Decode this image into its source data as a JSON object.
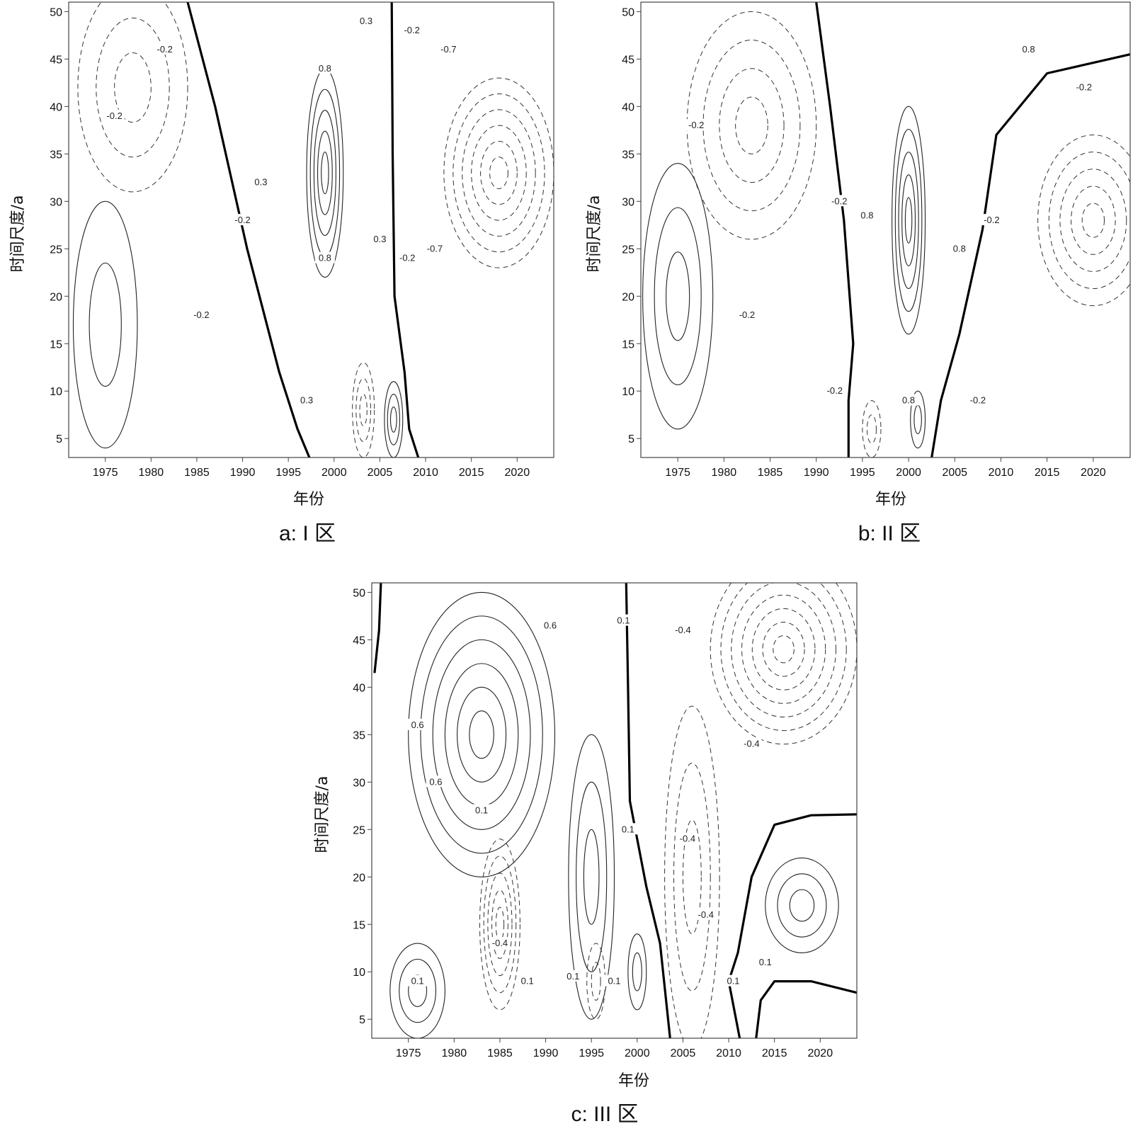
{
  "chart_data": [
    {
      "type": "contour",
      "caption": "a: I 区",
      "xlabel": "年份",
      "ylabel": "时间尺度/a",
      "xlim": [
        1971,
        2024
      ],
      "ylim": [
        3,
        51
      ],
      "xticks": [
        1975,
        1980,
        1985,
        1990,
        1995,
        2000,
        2005,
        2010,
        2015,
        2020
      ],
      "yticks": [
        5,
        10,
        15,
        20,
        25,
        30,
        35,
        40,
        45,
        50
      ],
      "zero_lines": [
        [
          [
            1984.0,
            51
          ],
          [
            1987.0,
            40
          ],
          [
            1990.5,
            25
          ],
          [
            1994.0,
            12
          ],
          [
            1996.0,
            6
          ],
          [
            1997.3,
            3
          ]
        ],
        [
          [
            2006.3,
            51
          ],
          [
            2006.4,
            35
          ],
          [
            2006.6,
            20
          ],
          [
            2007.7,
            12
          ],
          [
            2008.2,
            6
          ],
          [
            2009.2,
            3
          ]
        ]
      ],
      "positive_centers": [
        {
          "x": 1999.0,
          "y": 33,
          "rx": 2.0,
          "ry": 11,
          "levels": 5
        },
        {
          "x": 2006.5,
          "y": 7,
          "rx": 1.0,
          "ry": 4,
          "levels": 3
        },
        {
          "x": 1975.0,
          "y": 17,
          "rx": 3.5,
          "ry": 13,
          "levels": 2
        }
      ],
      "negative_centers": [
        {
          "x": 2018.0,
          "y": 33,
          "rx": 6,
          "ry": 10,
          "levels": 6
        },
        {
          "x": 1978.0,
          "y": 42,
          "rx": 6,
          "ry": 11,
          "levels": 3
        },
        {
          "x": 2003.2,
          "y": 8,
          "rx": 1.2,
          "ry": 5,
          "levels": 3
        }
      ],
      "contour_labels": [
        {
          "x": 1981.5,
          "y": 46,
          "text": "-0.2"
        },
        {
          "x": 1976.0,
          "y": 39,
          "text": "-0.2"
        },
        {
          "x": 1990.0,
          "y": 28,
          "text": "-0.2"
        },
        {
          "x": 1985.5,
          "y": 18,
          "text": "-0.2"
        },
        {
          "x": 2003.5,
          "y": 49,
          "text": "0.3"
        },
        {
          "x": 1999.0,
          "y": 44,
          "text": "0.8"
        },
        {
          "x": 1992.0,
          "y": 32,
          "text": "0.3"
        },
        {
          "x": 1999.0,
          "y": 24,
          "text": "0.8"
        },
        {
          "x": 2005.0,
          "y": 26,
          "text": "0.3"
        },
        {
          "x": 1997.0,
          "y": 9,
          "text": "0.3"
        },
        {
          "x": 2008.5,
          "y": 48,
          "text": "-0.2"
        },
        {
          "x": 2012.5,
          "y": 46,
          "text": "-0.7"
        },
        {
          "x": 2008.0,
          "y": 24,
          "text": "-0.2"
        },
        {
          "x": 2011.0,
          "y": 25,
          "text": "-0.7"
        }
      ]
    },
    {
      "type": "contour",
      "caption": "b:  II 区",
      "xlabel": "年份",
      "ylabel": "时间尺度/a",
      "xlim": [
        1971,
        2024
      ],
      "ylim": [
        3,
        51
      ],
      "xticks": [
        1975,
        1980,
        1985,
        1990,
        1995,
        2000,
        2005,
        2010,
        2015,
        2020
      ],
      "yticks": [
        5,
        10,
        15,
        20,
        25,
        30,
        35,
        40,
        45,
        50
      ],
      "zero_lines": [
        [
          [
            1990.0,
            51
          ],
          [
            1991.5,
            40
          ],
          [
            1993.0,
            28
          ],
          [
            1994.0,
            15
          ],
          [
            1993.5,
            9
          ],
          [
            1993.5,
            3
          ]
        ],
        [
          [
            2024.0,
            45.5
          ],
          [
            2015.0,
            43.5
          ],
          [
            2009.5,
            37
          ],
          [
            2008.0,
            27
          ],
          [
            2005.5,
            16
          ],
          [
            2003.5,
            9
          ],
          [
            2002.5,
            3
          ]
        ]
      ],
      "positive_centers": [
        {
          "x": 2000.0,
          "y": 28,
          "rx": 1.8,
          "ry": 12,
          "levels": 5
        },
        {
          "x": 1975.0,
          "y": 20,
          "rx": 3.8,
          "ry": 14,
          "levels": 3
        },
        {
          "x": 2001.0,
          "y": 7,
          "rx": 0.8,
          "ry": 3,
          "levels": 2
        }
      ],
      "negative_centers": [
        {
          "x": 2020.0,
          "y": 28,
          "rx": 6,
          "ry": 9,
          "levels": 5
        },
        {
          "x": 1983.0,
          "y": 38,
          "rx": 7,
          "ry": 12,
          "levels": 4
        },
        {
          "x": 1996.0,
          "y": 6,
          "rx": 1.0,
          "ry": 3,
          "levels": 2
        }
      ],
      "contour_labels": [
        {
          "x": 1977.0,
          "y": 38,
          "text": "-0.2"
        },
        {
          "x": 1982.5,
          "y": 18,
          "text": "-0.2"
        },
        {
          "x": 1992.5,
          "y": 30,
          "text": "-0.2"
        },
        {
          "x": 1992.0,
          "y": 10,
          "text": "-0.2"
        },
        {
          "x": 1995.5,
          "y": 28.5,
          "text": "0.8"
        },
        {
          "x": 2000.0,
          "y": 9,
          "text": "0.8"
        },
        {
          "x": 2005.5,
          "y": 25,
          "text": "0.8"
        },
        {
          "x": 2009.0,
          "y": 28,
          "text": "-0.2"
        },
        {
          "x": 2013.0,
          "y": 46,
          "text": "0.8"
        },
        {
          "x": 2019.0,
          "y": 42,
          "text": "-0.2"
        },
        {
          "x": 2007.5,
          "y": 9,
          "text": "-0.2"
        }
      ]
    },
    {
      "type": "contour",
      "caption": "c: III 区",
      "xlabel": "年份",
      "ylabel": "时间尺度/a",
      "xlim": [
        1971,
        2024
      ],
      "ylim": [
        3,
        51
      ],
      "xticks": [
        1975,
        1980,
        1985,
        1990,
        1995,
        2000,
        2005,
        2010,
        2015,
        2020
      ],
      "yticks": [
        5,
        10,
        15,
        20,
        25,
        30,
        35,
        40,
        45,
        50
      ],
      "zero_lines": [
        [
          [
            1971.3,
            41.5
          ],
          [
            1971.8,
            46
          ],
          [
            1972.0,
            51
          ]
        ],
        [
          [
            1998.8,
            51
          ],
          [
            1999.0,
            40
          ],
          [
            1999.2,
            28
          ],
          [
            2001.0,
            19
          ],
          [
            2002.5,
            13
          ],
          [
            2003.6,
            3
          ]
        ],
        [
          [
            2024.0,
            26.6
          ],
          [
            2019.0,
            26.5
          ],
          [
            2015.0,
            25.5
          ],
          [
            2012.5,
            20
          ],
          [
            2011.0,
            12
          ],
          [
            2010.0,
            9
          ],
          [
            2011.2,
            3
          ]
        ],
        [
          [
            2024.0,
            7.8
          ],
          [
            2019.0,
            9
          ],
          [
            2015.0,
            9
          ],
          [
            2013.5,
            7
          ],
          [
            2013.0,
            3
          ]
        ]
      ],
      "positive_centers": [
        {
          "x": 1983.0,
          "y": 35,
          "rx": 8,
          "ry": 15,
          "levels": 6
        },
        {
          "x": 1995.0,
          "y": 20,
          "rx": 2.5,
          "ry": 15,
          "levels": 3
        },
        {
          "x": 2018.0,
          "y": 17,
          "rx": 4,
          "ry": 5,
          "levels": 3
        },
        {
          "x": 2000.0,
          "y": 10,
          "rx": 1.0,
          "ry": 4,
          "levels": 2
        },
        {
          "x": 1976.0,
          "y": 8,
          "rx": 3,
          "ry": 5,
          "levels": 3
        }
      ],
      "negative_centers": [
        {
          "x": 2016.0,
          "y": 44,
          "rx": 8,
          "ry": 10,
          "levels": 7
        },
        {
          "x": 1985.0,
          "y": 15,
          "rx": 2.2,
          "ry": 9,
          "levels": 5
        },
        {
          "x": 2006.0,
          "y": 20,
          "rx": 3,
          "ry": 18,
          "levels": 3
        },
        {
          "x": 1995.5,
          "y": 9,
          "rx": 1.0,
          "ry": 4,
          "levels": 2
        }
      ]
    }
  ],
  "labels": {
    "c_labels": [
      {
        "x": 1976.0,
        "y": 36,
        "text": "0.6"
      },
      {
        "x": 1990.5,
        "y": 46.5,
        "text": "0.6"
      },
      {
        "x": 1978.0,
        "y": 30,
        "text": "0.6"
      },
      {
        "x": 1998.5,
        "y": 47,
        "text": "0.1"
      },
      {
        "x": 2005.0,
        "y": 46,
        "text": "-0.4"
      },
      {
        "x": 1983.0,
        "y": 27,
        "text": "0.1"
      },
      {
        "x": 1999.0,
        "y": 25,
        "text": "0.1"
      },
      {
        "x": 2005.5,
        "y": 24,
        "text": "-0.4"
      },
      {
        "x": 2012.5,
        "y": 34,
        "text": "-0.4"
      },
      {
        "x": 2007.5,
        "y": 16,
        "text": "-0.4"
      },
      {
        "x": 1985.0,
        "y": 13,
        "text": "-0.4"
      },
      {
        "x": 1976.0,
        "y": 9,
        "text": "0.1"
      },
      {
        "x": 1988.0,
        "y": 9,
        "text": "0.1"
      },
      {
        "x": 1993.0,
        "y": 9.5,
        "text": "0.1"
      },
      {
        "x": 1997.5,
        "y": 9,
        "text": "0.1"
      },
      {
        "x": 2010.5,
        "y": 9,
        "text": "0.1"
      },
      {
        "x": 2014.0,
        "y": 11,
        "text": "0.1"
      }
    ]
  }
}
